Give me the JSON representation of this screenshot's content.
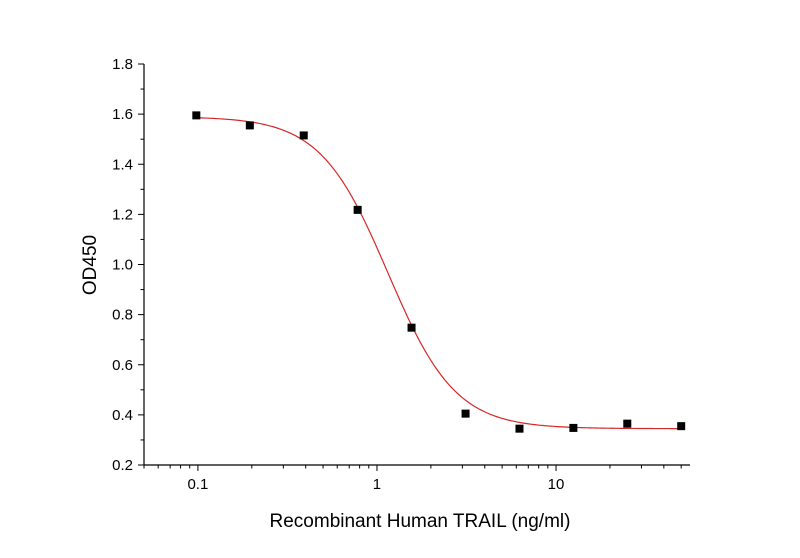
{
  "chart_data": {
    "type": "scatter",
    "title": "",
    "xlabel": "Recombinant Human TRAIL (ng/ml)",
    "ylabel": "OD450",
    "x_scale": "log",
    "xlim": [
      0.05,
      56
    ],
    "ylim": [
      0.2,
      1.8
    ],
    "x_ticks": [
      {
        "value": 0.1,
        "label": "0.1"
      },
      {
        "value": 1,
        "label": "1"
      },
      {
        "value": 10,
        "label": "10"
      }
    ],
    "y_ticks": [
      {
        "value": 0.2,
        "label": "0.2"
      },
      {
        "value": 0.4,
        "label": "0.4"
      },
      {
        "value": 0.6,
        "label": "0.6"
      },
      {
        "value": 0.8,
        "label": "0.8"
      },
      {
        "value": 1.0,
        "label": "1.0"
      },
      {
        "value": 1.2,
        "label": "1.2"
      },
      {
        "value": 1.4,
        "label": "1.4"
      },
      {
        "value": 1.6,
        "label": "1.6"
      },
      {
        "value": 1.8,
        "label": "1.8"
      }
    ],
    "grid": false,
    "series": [
      {
        "marker": "square",
        "color": "#000000",
        "x": [
          0.098,
          0.195,
          0.39,
          0.78,
          1.56,
          3.125,
          6.25,
          12.5,
          25,
          50
        ],
        "y": [
          1.595,
          1.555,
          1.515,
          1.218,
          0.748,
          0.405,
          0.345,
          0.348,
          0.365,
          0.355
        ]
      }
    ],
    "fit_curve": {
      "model": "4PL",
      "color": "#d62728",
      "top": 1.59,
      "bottom": 0.345,
      "ec50": 1.15,
      "hill": 2.3
    }
  }
}
